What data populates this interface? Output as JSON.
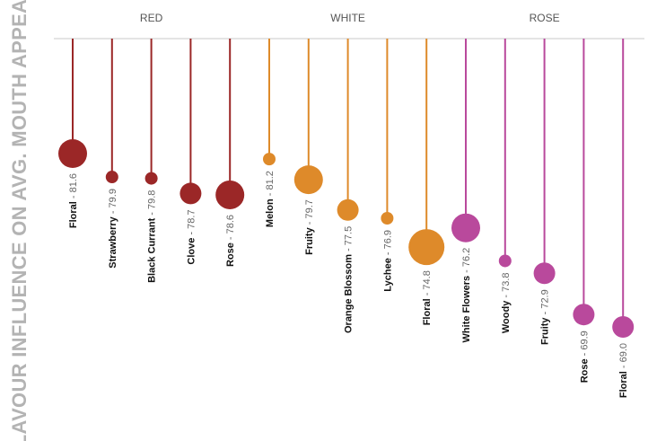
{
  "chart_data": {
    "type": "lollipop",
    "ylabel": "FLAVOUR INFLUENCE ON AVG. MOUTH APPEAL",
    "groups": [
      {
        "name": "RED",
        "color": "#9b2727",
        "items": [
          {
            "label": "Floral",
            "value": 81.6,
            "size": "large"
          },
          {
            "label": "Strawberry",
            "value": 79.9,
            "size": "small"
          },
          {
            "label": "Black Currant",
            "value": 79.8,
            "size": "small"
          },
          {
            "label": "Clove",
            "value": 78.7,
            "size": "medium"
          },
          {
            "label": "Rose",
            "value": 78.6,
            "size": "large"
          }
        ]
      },
      {
        "name": "WHITE",
        "color": "#de8a2a",
        "items": [
          {
            "label": "Melon",
            "value": 81.2,
            "size": "small"
          },
          {
            "label": "Fruity",
            "value": 79.7,
            "size": "large"
          },
          {
            "label": "Orange Blossom",
            "value": 77.5,
            "size": "medium"
          },
          {
            "label": "Lychee",
            "value": 76.9,
            "size": "small"
          },
          {
            "label": "Floral",
            "value": 74.8,
            "size": "xlarge"
          }
        ]
      },
      {
        "name": "ROSE",
        "color": "#b9499c",
        "items": [
          {
            "label": "White Flowers",
            "value": 76.2,
            "size": "large"
          },
          {
            "label": "Woody",
            "value": 73.8,
            "size": "small"
          },
          {
            "label": "Fruity",
            "value": 72.9,
            "size": "medium"
          },
          {
            "label": "Rose",
            "value": 69.9,
            "size": "medium"
          },
          {
            "label": "Floral",
            "value": 69.0,
            "size": "medium"
          }
        ]
      }
    ]
  }
}
